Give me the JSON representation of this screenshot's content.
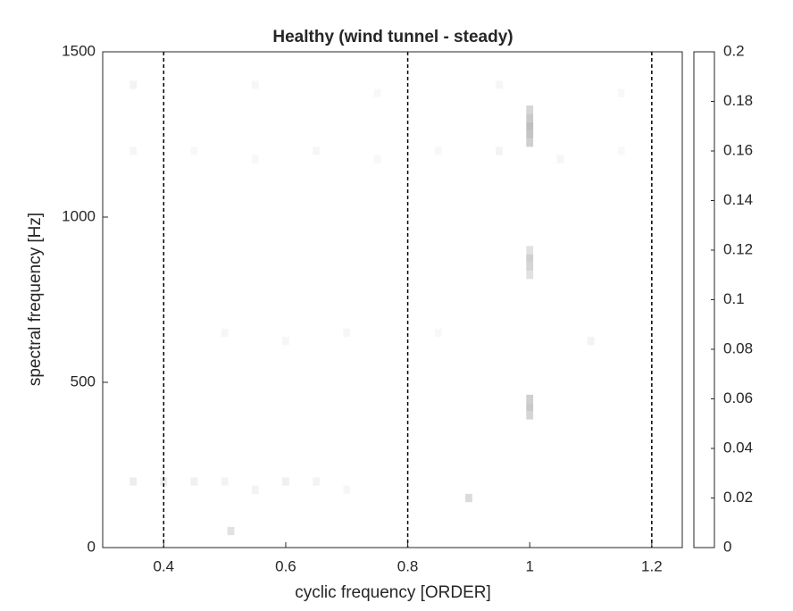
{
  "chart_data": {
    "type": "heatmap",
    "title": "Healthy (wind tunnel - steady)",
    "xlabel": "cyclic frequency [ORDER]",
    "ylabel": "spectral frequency [Hz]",
    "xlim": [
      0.3,
      1.25
    ],
    "ylim": [
      0,
      1500
    ],
    "xticks": [
      0.4,
      0.6,
      0.8,
      1,
      1.2
    ],
    "yticks": [
      0,
      500,
      1000,
      1500
    ],
    "vlines": [
      0.4,
      0.8,
      1.2
    ],
    "colorbar": {
      "lim": [
        0,
        0.2
      ],
      "ticks": [
        0,
        0.02,
        0.04,
        0.06,
        0.08,
        0.1,
        0.12,
        0.14,
        0.16,
        0.18,
        0.2
      ],
      "colors": [
        "#ffffff",
        "#888888"
      ]
    },
    "x": [
      1.0,
      1.0,
      1.0,
      1.0,
      1.0,
      1.0,
      1.0,
      1.0,
      1.0,
      1.0,
      1.0,
      1.0,
      0.35,
      0.4,
      0.45,
      0.5,
      0.55,
      0.6,
      0.65,
      0.7,
      0.35,
      0.45,
      0.55,
      0.65,
      0.75,
      0.85,
      0.95,
      1.05,
      1.15,
      0.5,
      0.6,
      0.7,
      0.85,
      1.1,
      0.9,
      0.51,
      0.35,
      0.55,
      0.75,
      0.95,
      1.15
    ],
    "y": [
      1225,
      1250,
      1275,
      1300,
      1325,
      825,
      850,
      875,
      900,
      400,
      425,
      450,
      200,
      200,
      200,
      200,
      175,
      200,
      200,
      175,
      1200,
      1200,
      1175,
      1200,
      1175,
      1200,
      1200,
      1175,
      1200,
      650,
      625,
      650,
      650,
      625,
      150,
      50,
      1400,
      1400,
      1375,
      1400,
      1375
    ],
    "values": [
      0.08,
      0.1,
      0.11,
      0.09,
      0.07,
      0.05,
      0.07,
      0.08,
      0.05,
      0.07,
      0.09,
      0.08,
      0.03,
      0.03,
      0.025,
      0.02,
      0.02,
      0.025,
      0.02,
      0.015,
      0.015,
      0.012,
      0.012,
      0.015,
      0.012,
      0.012,
      0.02,
      0.015,
      0.012,
      0.015,
      0.015,
      0.015,
      0.012,
      0.02,
      0.06,
      0.05,
      0.02,
      0.015,
      0.012,
      0.015,
      0.012
    ]
  }
}
